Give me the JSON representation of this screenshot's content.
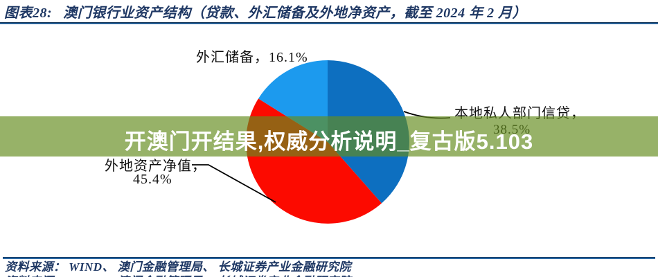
{
  "header": {
    "figure_label": "图表28:",
    "figure_title": "澳门银行业资产结构（贷款、外汇储备及外地净资产，截至 2024 年 2 月）"
  },
  "watermark": {
    "text": "开澳门开结果,权威分析说明_复古版5.103",
    "bg_color": "rgba(100,140,30,0.67)",
    "text_color": "#ffffff"
  },
  "footer": {
    "source_text": "资料来源： WIND、 澳门金融管理局、 长城证券产业金融研究院"
  },
  "colors": {
    "header_navy": "#1F3864",
    "rule_blue": "#2E74B5",
    "leader_line": "#000000"
  },
  "chart_data": {
    "type": "pie",
    "title": "澳门银行业资产结构（贷款、外汇储备及外地净资产，截至 2024 年 2 月）",
    "direction": "clockwise",
    "start_angle_deg": 0,
    "legend_position": "none",
    "labels_outside": true,
    "total_pct": 100,
    "slices": [
      {
        "name": "本地私人部门信贷",
        "pct": 38.5,
        "color": "#0D6FC0"
      },
      {
        "name": "外地资产净值",
        "pct": 45.4,
        "color": "#FC0A00"
      },
      {
        "name": "外汇储备",
        "pct": 16.1,
        "color": "#1C9AEE"
      }
    ],
    "callouts": {
      "fx": {
        "line1": "外汇储备，16.1%"
      },
      "local": {
        "line1": "本地私人部门信贷，",
        "line2": "38.5%"
      },
      "net": {
        "line1": "外地资产净值，",
        "line2": "45.4%"
      }
    }
  }
}
